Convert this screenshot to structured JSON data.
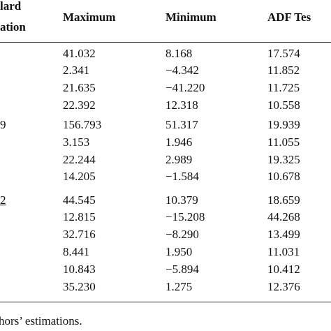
{
  "header": {
    "sd_line1": "lard",
    "sd_line2": "ation",
    "max": "Maximum",
    "min": "Minimum",
    "adf": "ADF Tes"
  },
  "table": {
    "rows": [
      {
        "max": "41.032",
        "min": "8.168",
        "adf": "17.574"
      },
      {
        "max": "2.341",
        "min": "−4.342",
        "adf": "11.852"
      },
      {
        "max": "21.635",
        "min": "−41.220",
        "adf": "11.725"
      },
      {
        "max": "22.392",
        "min": "12.318",
        "adf": "10.558"
      },
      {
        "sd": "9",
        "max": "156.793",
        "min": "51.317",
        "adf": "19.939"
      },
      {
        "max": "3.153",
        "min": "1.946",
        "adf": "11.055"
      },
      {
        "max": "22.244",
        "min": "2.989",
        "adf": "19.325"
      },
      {
        "max": "14.205",
        "min": "−1.584",
        "adf": "10.678"
      },
      {
        "sd": "2",
        "max": "44.545",
        "min": "10.379",
        "adf": "18.659"
      },
      {
        "max": "12.815",
        "min": "−15.208",
        "adf": "44.268"
      },
      {
        "max": "32.716",
        "min": "−8.290",
        "adf": "13.499"
      },
      {
        "max": "8.441",
        "min": "1.950",
        "adf": "11.031"
      },
      {
        "max": "10.843",
        "min": "−5.894",
        "adf": "10.412"
      },
      {
        "max": "35.230",
        "min": "1.275",
        "adf": "12.376"
      }
    ]
  },
  "footer": {
    "note": "hors’ estimations."
  }
}
